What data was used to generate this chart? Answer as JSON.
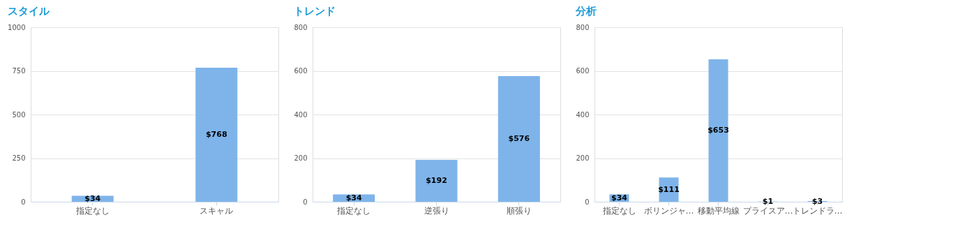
{
  "chart_data": [
    {
      "type": "bar",
      "title": "スタイル",
      "categories": [
        "指定なし",
        "スキャル"
      ],
      "values": [
        34,
        768
      ],
      "value_labels": [
        "$34",
        "$768"
      ],
      "color": "#7eb4ea",
      "ylim": [
        0,
        1000
      ],
      "yticks": [
        0,
        250,
        500,
        750,
        1000
      ],
      "grid": "y"
    },
    {
      "type": "bar",
      "title": "トレンド",
      "categories": [
        "指定なし",
        "逆張り",
        "順張り"
      ],
      "values": [
        34,
        192,
        576
      ],
      "value_labels": [
        "$34",
        "$192",
        "$576"
      ],
      "color": "#7eb4ea",
      "ylim": [
        0,
        800
      ],
      "yticks": [
        0,
        200,
        400,
        600,
        800
      ],
      "grid": "y"
    },
    {
      "type": "bar",
      "title": "分析",
      "categories": [
        "指定なし",
        "ボリンジャ…",
        "移動平均線",
        "プライスア…",
        "トレンドラ…"
      ],
      "values": [
        34,
        111,
        653,
        1,
        3
      ],
      "value_labels": [
        "$34",
        "$111",
        "$653",
        "$1",
        "$3"
      ],
      "color": "#7eb4ea",
      "ylim": [
        0,
        800
      ],
      "yticks": [
        0,
        200,
        400,
        600,
        800
      ],
      "grid": "y"
    }
  ]
}
